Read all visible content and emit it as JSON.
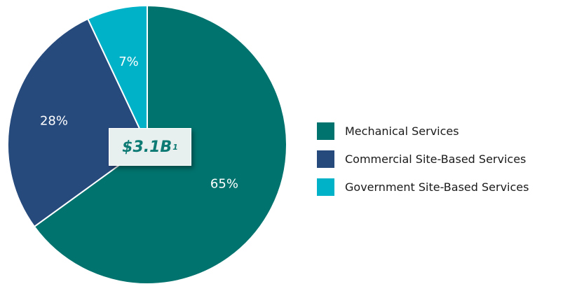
{
  "chart_data": {
    "type": "pie",
    "title": "",
    "center_label": {
      "value": "$3.1B",
      "footnote": "1"
    },
    "slices": [
      {
        "name": "Mechanical Services",
        "value": 65,
        "label": "65%",
        "color": "#00736e"
      },
      {
        "name": "Commercial Site-Based Services",
        "value": 28,
        "label": "28%",
        "color": "#274a7d"
      },
      {
        "name": "Government Site-Based Services",
        "value": 7,
        "label": "7%",
        "color": "#00b2c8"
      }
    ],
    "legend_position": "right"
  }
}
